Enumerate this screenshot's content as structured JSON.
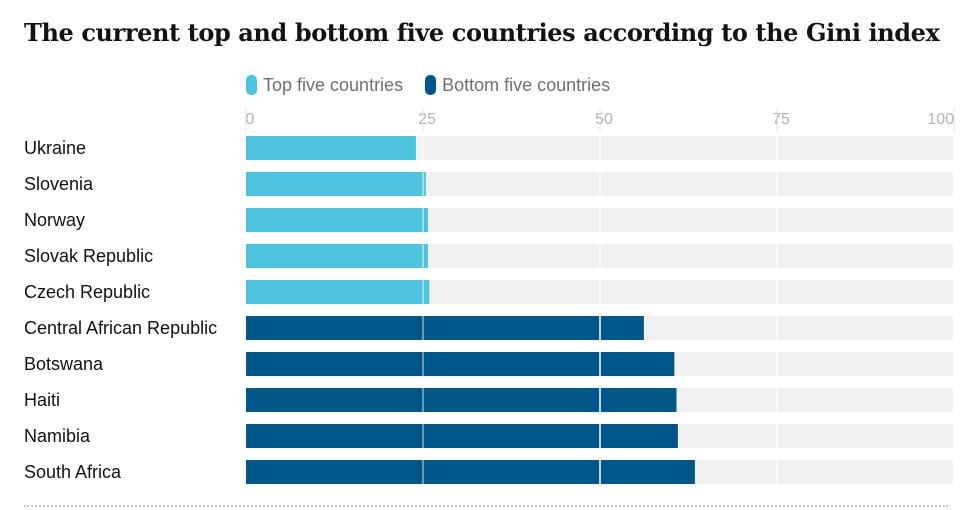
{
  "title": "The current top and bottom five countries according to the Gini index",
  "legend": [
    {
      "label": "Top five countries",
      "color": "#4ec3de"
    },
    {
      "label": "Bottom five countries",
      "color": "#005689"
    }
  ],
  "chart_data": {
    "type": "bar",
    "orientation": "horizontal",
    "title": "The current top and bottom five countries according to the Gini index",
    "xlabel": "",
    "ylabel": "",
    "xlim": [
      0,
      100
    ],
    "ticks": [
      0,
      25,
      50,
      75,
      100
    ],
    "reference_line": 25,
    "background_track": true,
    "categories": [
      "Ukraine",
      "Slovenia",
      "Norway",
      "Slovak Republic",
      "Czech Republic",
      "Central African Republic",
      "Botswana",
      "Haiti",
      "Namibia",
      "South Africa"
    ],
    "values": [
      24.0,
      25.4,
      25.7,
      25.7,
      25.9,
      56.2,
      60.5,
      60.8,
      61.0,
      63.4
    ],
    "groups": [
      "Top five countries",
      "Top five countries",
      "Top five countries",
      "Top five countries",
      "Top five countries",
      "Bottom five countries",
      "Bottom five countries",
      "Bottom five countries",
      "Bottom five countries",
      "Bottom five countries"
    ],
    "colors": {
      "Top five countries": "#4ec3de",
      "Bottom five countries": "#005689"
    },
    "track_color": "#f1f1f1",
    "grid_color": "#dcdcdc",
    "tick_color": "#b3b3b3",
    "label_color": "#121212"
  }
}
